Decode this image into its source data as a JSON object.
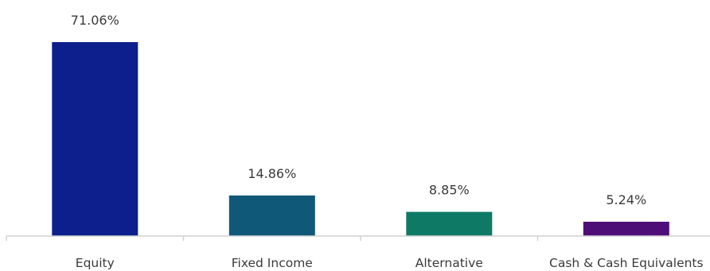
{
  "chart_data": {
    "type": "bar",
    "categories": [
      "Equity",
      "Fixed Income",
      "Alternative",
      "Cash & Cash Equivalents"
    ],
    "values": [
      71.06,
      14.86,
      8.85,
      5.24
    ],
    "data_labels": [
      "71.06%",
      "14.86%",
      "8.85%",
      "5.24%"
    ],
    "colors": [
      "#0c1f8c",
      "#0f5878",
      "#0e7a65",
      "#4e0e77"
    ],
    "axis_color": "#d0d0d0",
    "text_color": "#3a3a3a",
    "ylim": [
      0,
      71.06
    ],
    "grid": false,
    "legend": "none"
  }
}
